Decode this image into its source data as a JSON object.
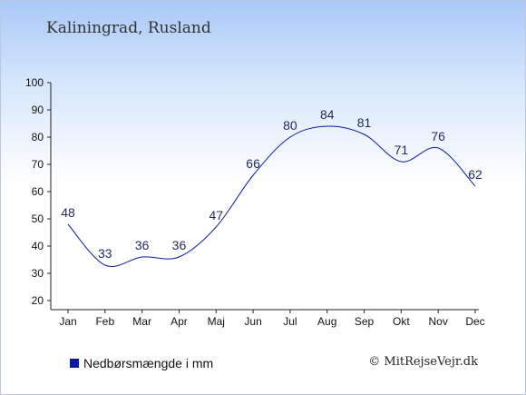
{
  "title": "Kaliningrad, Rusland",
  "credit": "© MitRejseVejr.dk",
  "chart_data": {
    "type": "line",
    "title": "Kaliningrad, Rusland",
    "categories": [
      "Jan",
      "Feb",
      "Mar",
      "Apr",
      "Maj",
      "Jun",
      "Jul",
      "Aug",
      "Sep",
      "Okt",
      "Nov",
      "Dec"
    ],
    "series": [
      {
        "name": "Nedbørsmængde i mm",
        "values": [
          48,
          33,
          36,
          36,
          47,
          66,
          80,
          84,
          81,
          71,
          76,
          62
        ],
        "color": "#0a1aa8"
      }
    ],
    "y_ticks": [
      20,
      30,
      40,
      50,
      60,
      70,
      80,
      90,
      100
    ],
    "ylim": [
      20,
      100
    ],
    "grid": false,
    "legend_position": "bottom-left"
  }
}
